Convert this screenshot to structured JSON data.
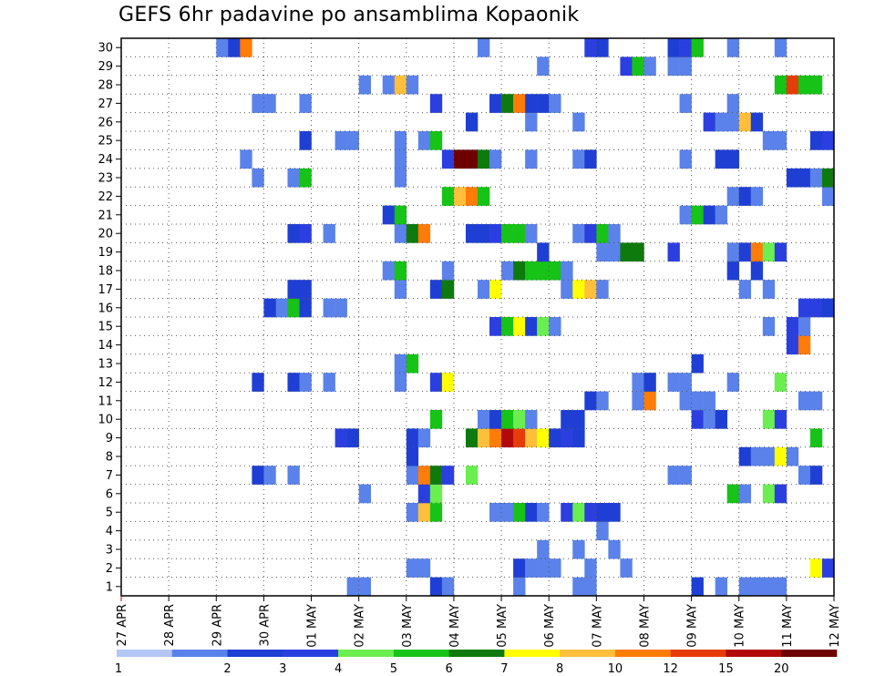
{
  "chart_data": {
    "type": "heatmap",
    "title": "GEFS 6hr padavine po ansamblima Kopaonik",
    "x_tick_labels": [
      "27 APR",
      "28 APR",
      "29 APR",
      "30 APR",
      "01 MAY",
      "02 MAY",
      "03 MAY",
      "04 MAY",
      "05 MAY",
      "06 MAY",
      "07 MAY",
      "08 MAY",
      "09 MAY",
      "10 MAY",
      "11 MAY",
      "12 MAY"
    ],
    "y_tick_labels": [
      "1",
      "2",
      "3",
      "4",
      "5",
      "6",
      "7",
      "8",
      "9",
      "10",
      "11",
      "12",
      "13",
      "14",
      "15",
      "16",
      "17",
      "18",
      "19",
      "20",
      "21",
      "22",
      "23",
      "24",
      "25",
      "26",
      "27",
      "28",
      "29",
      "30"
    ],
    "xlim": [
      0,
      60
    ],
    "ylim": [
      0.5,
      30.5
    ],
    "grid": true,
    "legend_labels": [
      "1",
      "2",
      "3",
      "4",
      "5",
      "6",
      "7",
      "8",
      "10",
      "12",
      "15",
      "20"
    ],
    "legend_colors": [
      "#b3c6f5",
      "#5a82ea",
      "#1f3fd4",
      "#2b3fe0",
      "#6bee50",
      "#16c316",
      "#0e7a0e",
      "#ffff00",
      "#ffbf3c",
      "#ff7c08",
      "#e63c0a",
      "#b20a0a",
      "#6e0000"
    ],
    "cells": [
      [
        19,
        1,
        1
      ],
      [
        20,
        1,
        1
      ],
      [
        26,
        1,
        2
      ],
      [
        27,
        1,
        1
      ],
      [
        33,
        1,
        1
      ],
      [
        38,
        1,
        1
      ],
      [
        39,
        1,
        1
      ],
      [
        48,
        1,
        2
      ],
      [
        50,
        1,
        1
      ],
      [
        52,
        1,
        1
      ],
      [
        53,
        1,
        1
      ],
      [
        54,
        1,
        1
      ],
      [
        55,
        1,
        1
      ],
      [
        24,
        2,
        1
      ],
      [
        25,
        2,
        1
      ],
      [
        33,
        2,
        2
      ],
      [
        34,
        2,
        1
      ],
      [
        35,
        2,
        1
      ],
      [
        36,
        2,
        1
      ],
      [
        39,
        2,
        1
      ],
      [
        42,
        2,
        1
      ],
      [
        58,
        2,
        7
      ],
      [
        59,
        2,
        3
      ],
      [
        35,
        3,
        1
      ],
      [
        38,
        3,
        1
      ],
      [
        41,
        3,
        1
      ],
      [
        40,
        4,
        1
      ],
      [
        24,
        5,
        1
      ],
      [
        25,
        5,
        8
      ],
      [
        26,
        5,
        5
      ],
      [
        31,
        5,
        1
      ],
      [
        32,
        5,
        1
      ],
      [
        33,
        5,
        5
      ],
      [
        34,
        5,
        2
      ],
      [
        35,
        5,
        1
      ],
      [
        37,
        5,
        3
      ],
      [
        38,
        5,
        4
      ],
      [
        39,
        5,
        3
      ],
      [
        40,
        5,
        2
      ],
      [
        41,
        5,
        2
      ],
      [
        20,
        6,
        1
      ],
      [
        25,
        6,
        3
      ],
      [
        26,
        6,
        4
      ],
      [
        51,
        6,
        5
      ],
      [
        52,
        6,
        1
      ],
      [
        54,
        6,
        4
      ],
      [
        55,
        6,
        3
      ],
      [
        11,
        7,
        2
      ],
      [
        12,
        7,
        1
      ],
      [
        14,
        7,
        1
      ],
      [
        24,
        7,
        1
      ],
      [
        25,
        7,
        9
      ],
      [
        26,
        7,
        6
      ],
      [
        27,
        7,
        3
      ],
      [
        29,
        7,
        4
      ],
      [
        46,
        7,
        1
      ],
      [
        47,
        7,
        1
      ],
      [
        57,
        7,
        1
      ],
      [
        58,
        7,
        2
      ],
      [
        24,
        8,
        2
      ],
      [
        52,
        8,
        2
      ],
      [
        53,
        8,
        1
      ],
      [
        54,
        8,
        1
      ],
      [
        55,
        8,
        7
      ],
      [
        56,
        8,
        1
      ],
      [
        18,
        9,
        3
      ],
      [
        19,
        9,
        2
      ],
      [
        24,
        9,
        2
      ],
      [
        25,
        9,
        1
      ],
      [
        29,
        9,
        6
      ],
      [
        30,
        9,
        8
      ],
      [
        31,
        9,
        9
      ],
      [
        32,
        9,
        11
      ],
      [
        33,
        9,
        10
      ],
      [
        34,
        9,
        8
      ],
      [
        35,
        9,
        7
      ],
      [
        36,
        9,
        2
      ],
      [
        37,
        9,
        3
      ],
      [
        38,
        9,
        2
      ],
      [
        58,
        9,
        5
      ],
      [
        26,
        10,
        5
      ],
      [
        30,
        10,
        1
      ],
      [
        31,
        10,
        2
      ],
      [
        32,
        10,
        5
      ],
      [
        33,
        10,
        4
      ],
      [
        34,
        10,
        1
      ],
      [
        37,
        10,
        2
      ],
      [
        38,
        10,
        2
      ],
      [
        48,
        10,
        3
      ],
      [
        49,
        10,
        1
      ],
      [
        50,
        10,
        2
      ],
      [
        54,
        10,
        4
      ],
      [
        55,
        10,
        3
      ],
      [
        39,
        11,
        2
      ],
      [
        40,
        11,
        1
      ],
      [
        43,
        11,
        1
      ],
      [
        44,
        11,
        9
      ],
      [
        47,
        11,
        1
      ],
      [
        48,
        11,
        1
      ],
      [
        49,
        11,
        1
      ],
      [
        57,
        11,
        1
      ],
      [
        58,
        11,
        1
      ],
      [
        11,
        12,
        2
      ],
      [
        14,
        12,
        2
      ],
      [
        15,
        12,
        1
      ],
      [
        17,
        12,
        1
      ],
      [
        23,
        12,
        1
      ],
      [
        26,
        12,
        3
      ],
      [
        27,
        12,
        7
      ],
      [
        43,
        12,
        1
      ],
      [
        44,
        12,
        2
      ],
      [
        46,
        12,
        1
      ],
      [
        47,
        12,
        1
      ],
      [
        51,
        12,
        1
      ],
      [
        55,
        12,
        4
      ],
      [
        23,
        13,
        1
      ],
      [
        24,
        13,
        5
      ],
      [
        48,
        13,
        2
      ],
      [
        56,
        14,
        3
      ],
      [
        57,
        14,
        9
      ],
      [
        31,
        15,
        3
      ],
      [
        32,
        15,
        5
      ],
      [
        33,
        15,
        7
      ],
      [
        34,
        15,
        2
      ],
      [
        35,
        15,
        4
      ],
      [
        36,
        15,
        1
      ],
      [
        54,
        15,
        1
      ],
      [
        56,
        15,
        3
      ],
      [
        57,
        15,
        1
      ],
      [
        13,
        16,
        1
      ],
      [
        17,
        16,
        1
      ],
      [
        18,
        16,
        1
      ],
      [
        57,
        16,
        3
      ],
      [
        58,
        16,
        3
      ],
      [
        59,
        16,
        2
      ],
      [
        12,
        16,
        2
      ],
      [
        14,
        16,
        5
      ],
      [
        15,
        16,
        2
      ],
      [
        14,
        17,
        2
      ],
      [
        15,
        17,
        2
      ],
      [
        23,
        17,
        1
      ],
      [
        26,
        17,
        2
      ],
      [
        27,
        17,
        6
      ],
      [
        30,
        17,
        1
      ],
      [
        31,
        17,
        7
      ],
      [
        37,
        17,
        1
      ],
      [
        38,
        17,
        7
      ],
      [
        39,
        17,
        8
      ],
      [
        40,
        17,
        1
      ],
      [
        52,
        17,
        1
      ],
      [
        54,
        17,
        1
      ],
      [
        22,
        18,
        1
      ],
      [
        23,
        18,
        5
      ],
      [
        27,
        18,
        1
      ],
      [
        32,
        18,
        1
      ],
      [
        33,
        18,
        6
      ],
      [
        34,
        18,
        5
      ],
      [
        35,
        18,
        5
      ],
      [
        36,
        18,
        5
      ],
      [
        37,
        18,
        1
      ],
      [
        51,
        18,
        2
      ],
      [
        53,
        18,
        2
      ],
      [
        35,
        19,
        2
      ],
      [
        40,
        19,
        1
      ],
      [
        41,
        19,
        1
      ],
      [
        42,
        19,
        6
      ],
      [
        43,
        19,
        6
      ],
      [
        46,
        19,
        3
      ],
      [
        51,
        19,
        1
      ],
      [
        52,
        19,
        2
      ],
      [
        53,
        19,
        9
      ],
      [
        54,
        19,
        4
      ],
      [
        55,
        19,
        3
      ],
      [
        14,
        20,
        2
      ],
      [
        15,
        20,
        3
      ],
      [
        17,
        20,
        1
      ],
      [
        23,
        20,
        1
      ],
      [
        24,
        20,
        6
      ],
      [
        25,
        20,
        9
      ],
      [
        29,
        20,
        2
      ],
      [
        30,
        20,
        2
      ],
      [
        31,
        20,
        3
      ],
      [
        32,
        20,
        5
      ],
      [
        33,
        20,
        5
      ],
      [
        34,
        20,
        1
      ],
      [
        38,
        20,
        1
      ],
      [
        39,
        20,
        3
      ],
      [
        40,
        20,
        5
      ],
      [
        41,
        20,
        1
      ],
      [
        22,
        21,
        2
      ],
      [
        23,
        21,
        5
      ],
      [
        47,
        21,
        1
      ],
      [
        48,
        21,
        5
      ],
      [
        49,
        21,
        2
      ],
      [
        50,
        21,
        1
      ],
      [
        27,
        22,
        5
      ],
      [
        28,
        22,
        8
      ],
      [
        29,
        22,
        9
      ],
      [
        30,
        22,
        5
      ],
      [
        51,
        22,
        1
      ],
      [
        52,
        22,
        2
      ],
      [
        53,
        22,
        1
      ],
      [
        59,
        22,
        1
      ],
      [
        11,
        23,
        1
      ],
      [
        14,
        23,
        1
      ],
      [
        15,
        23,
        5
      ],
      [
        23,
        23,
        1
      ],
      [
        56,
        23,
        2
      ],
      [
        57,
        23,
        2
      ],
      [
        58,
        23,
        1
      ],
      [
        59,
        23,
        6
      ],
      [
        10,
        24,
        1
      ],
      [
        23,
        24,
        1
      ],
      [
        27,
        24,
        3
      ],
      [
        28,
        24,
        12
      ],
      [
        29,
        24,
        12
      ],
      [
        30,
        24,
        6
      ],
      [
        31,
        24,
        1
      ],
      [
        34,
        24,
        1
      ],
      [
        38,
        24,
        1
      ],
      [
        39,
        24,
        2
      ],
      [
        47,
        24,
        1
      ],
      [
        50,
        24,
        2
      ],
      [
        51,
        24,
        2
      ],
      [
        15,
        25,
        2
      ],
      [
        18,
        25,
        1
      ],
      [
        19,
        25,
        1
      ],
      [
        23,
        25,
        1
      ],
      [
        25,
        25,
        1
      ],
      [
        26,
        25,
        5
      ],
      [
        54,
        25,
        1
      ],
      [
        55,
        25,
        1
      ],
      [
        58,
        25,
        2
      ],
      [
        59,
        25,
        3
      ],
      [
        29,
        26,
        2
      ],
      [
        34,
        26,
        1
      ],
      [
        38,
        26,
        1
      ],
      [
        49,
        26,
        3
      ],
      [
        50,
        26,
        1
      ],
      [
        51,
        26,
        1
      ],
      [
        52,
        26,
        8
      ],
      [
        53,
        26,
        2
      ],
      [
        11,
        27,
        1
      ],
      [
        12,
        27,
        1
      ],
      [
        15,
        27,
        1
      ],
      [
        26,
        27,
        3
      ],
      [
        31,
        27,
        2
      ],
      [
        32,
        27,
        6
      ],
      [
        33,
        27,
        9
      ],
      [
        34,
        27,
        2
      ],
      [
        35,
        27,
        2
      ],
      [
        36,
        27,
        1
      ],
      [
        47,
        27,
        1
      ],
      [
        51,
        27,
        1
      ],
      [
        20,
        28,
        1
      ],
      [
        22,
        28,
        1
      ],
      [
        23,
        28,
        8
      ],
      [
        24,
        28,
        1
      ],
      [
        55,
        28,
        5
      ],
      [
        56,
        28,
        10
      ],
      [
        57,
        28,
        5
      ],
      [
        58,
        28,
        5
      ],
      [
        35,
        29,
        1
      ],
      [
        42,
        29,
        3
      ],
      [
        43,
        29,
        5
      ],
      [
        44,
        29,
        1
      ],
      [
        46,
        29,
        1
      ],
      [
        47,
        29,
        1
      ],
      [
        8,
        30,
        1
      ],
      [
        9,
        30,
        2
      ],
      [
        10,
        30,
        9
      ],
      [
        30,
        30,
        1
      ],
      [
        39,
        30,
        3
      ],
      [
        40,
        30,
        2
      ],
      [
        46,
        30,
        2
      ],
      [
        47,
        30,
        3
      ],
      [
        48,
        30,
        5
      ],
      [
        51,
        30,
        1
      ],
      [
        55,
        30,
        1
      ]
    ]
  }
}
